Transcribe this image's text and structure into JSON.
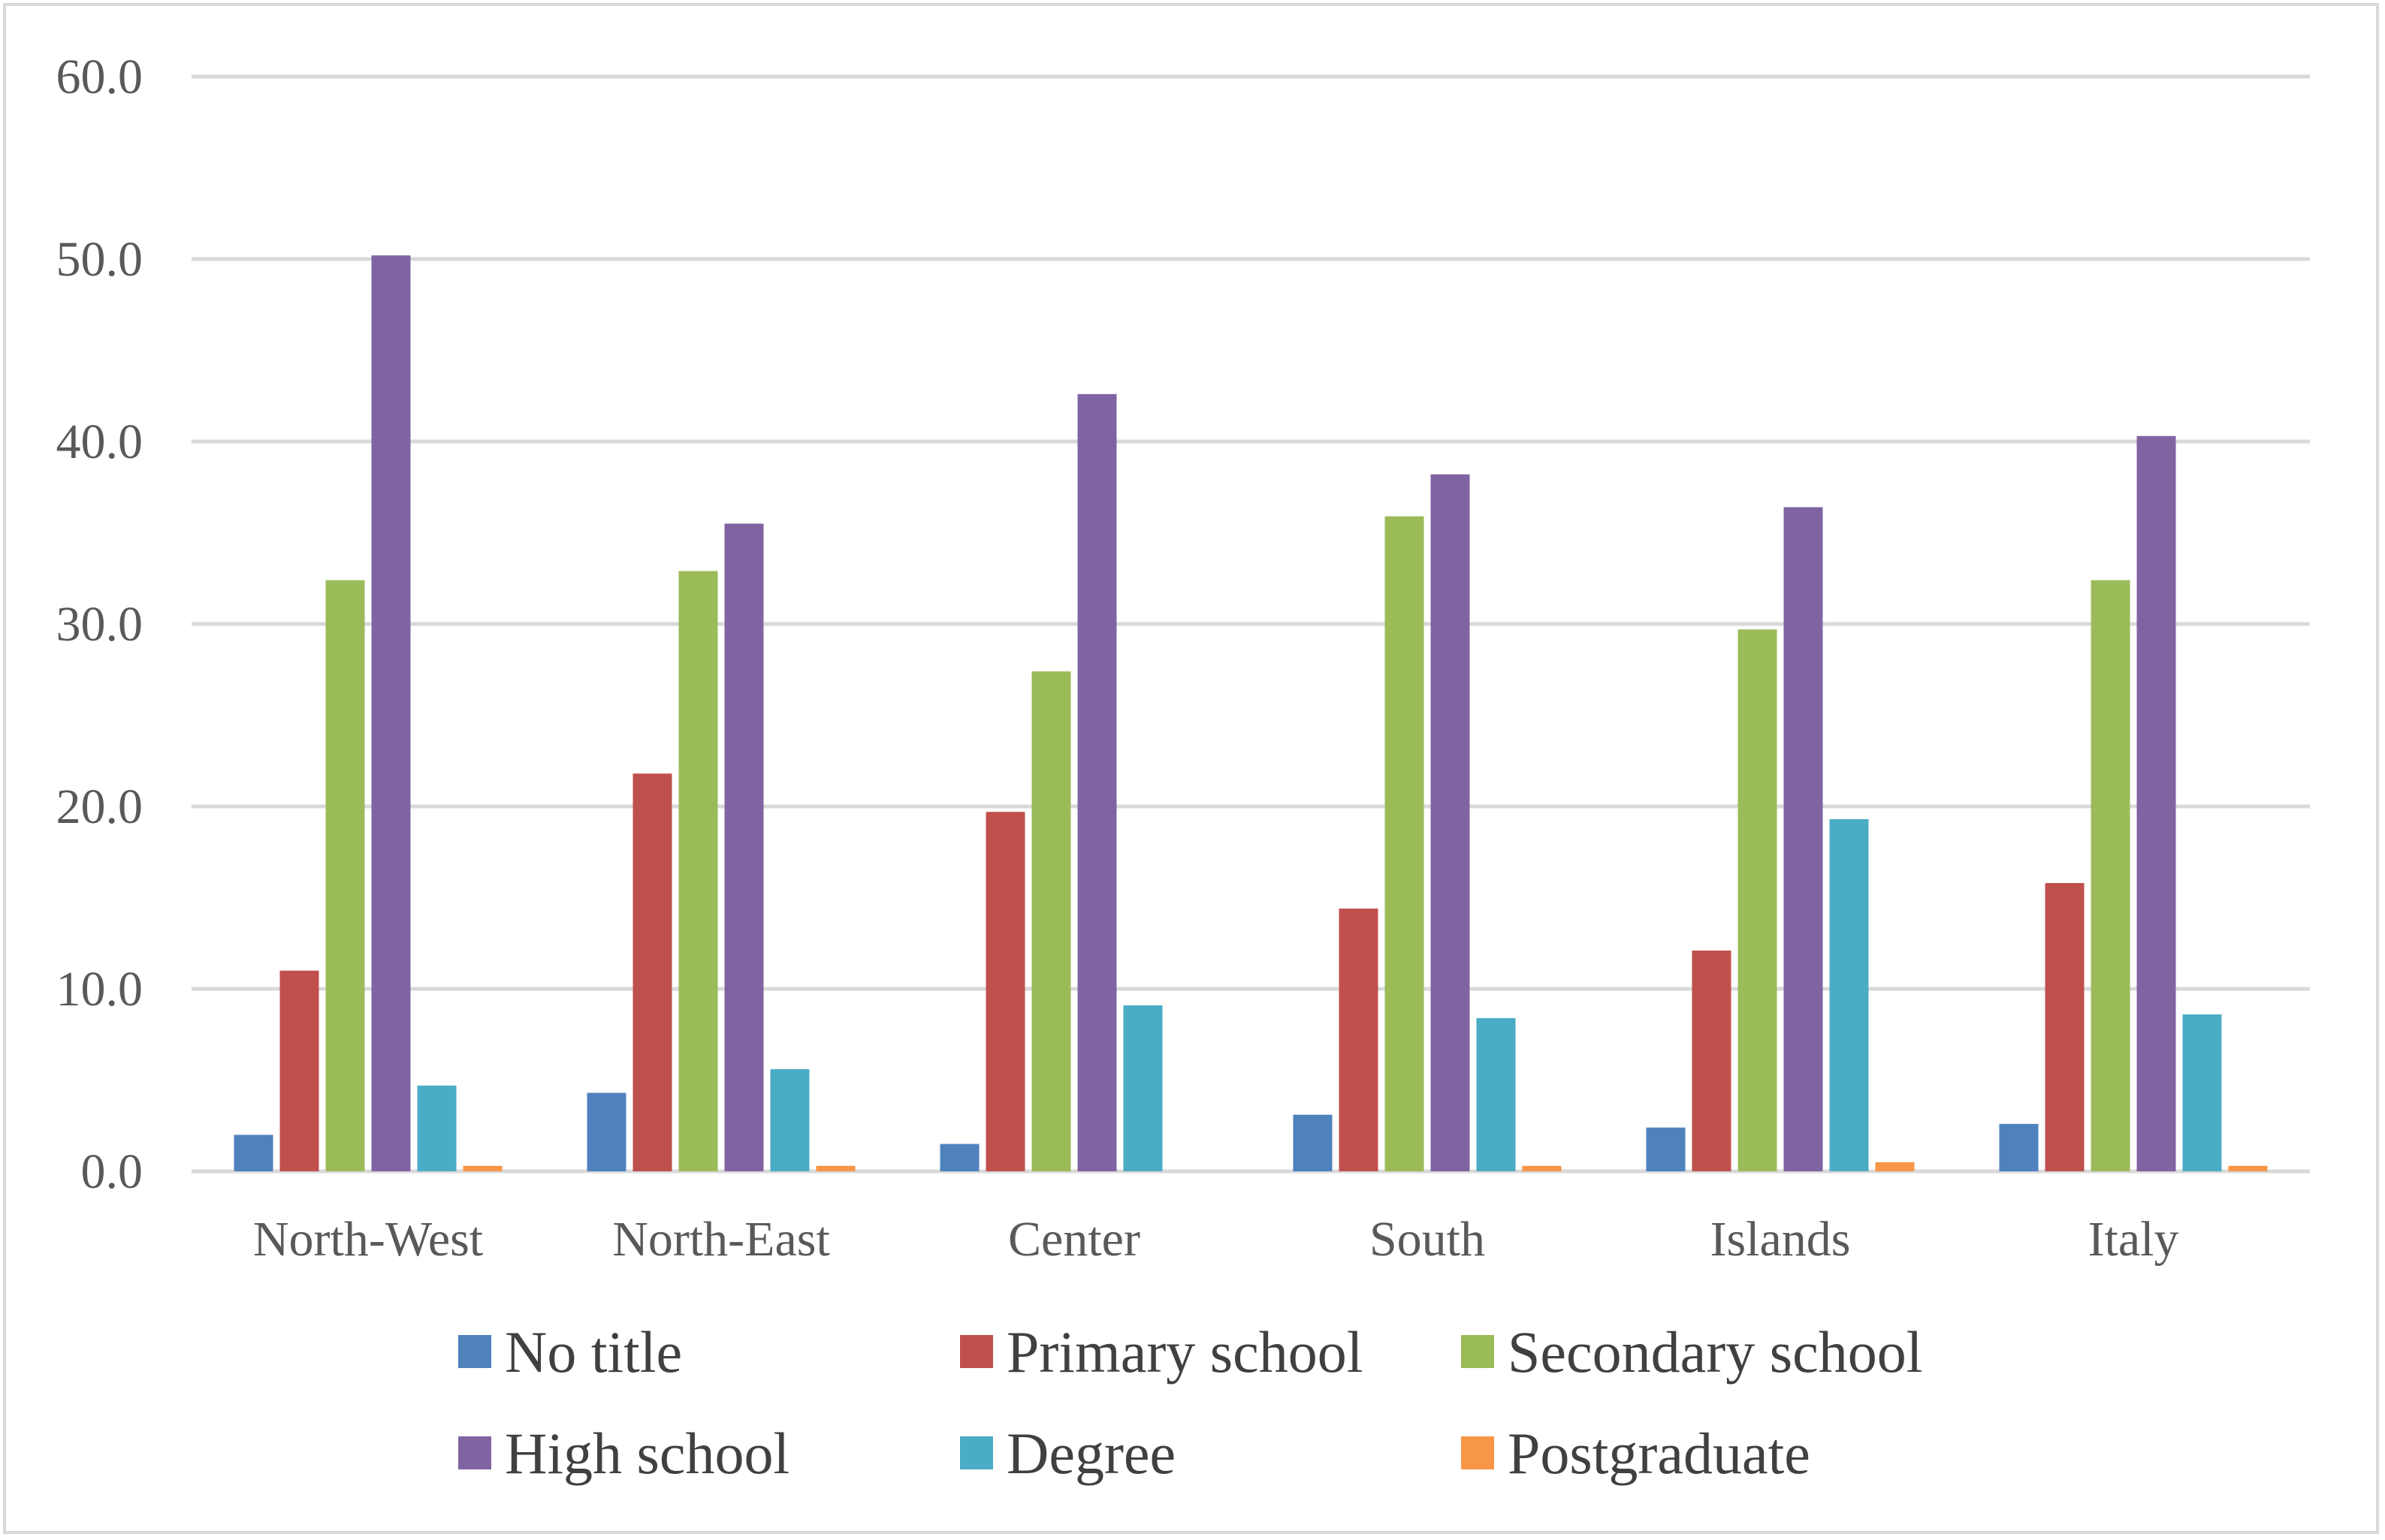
{
  "chart_data": {
    "type": "bar",
    "title": "",
    "xlabel": "",
    "ylabel": "",
    "ylim": [
      0,
      60
    ],
    "yticks": [
      "0.0",
      "10.0",
      "20.0",
      "30.0",
      "40.0",
      "50.0",
      "60.0"
    ],
    "grid": true,
    "legend_position": "bottom",
    "categories": [
      "North-West",
      "North-East",
      "Center",
      "South",
      "Islands",
      "Italy"
    ],
    "series": [
      {
        "name": "No title",
        "color": "#4f81bd",
        "values": [
          2.0,
          4.3,
          1.5,
          3.1,
          2.4,
          2.6
        ]
      },
      {
        "name": "Primary school",
        "color": "#c0504d",
        "values": [
          11.0,
          21.8,
          19.7,
          14.4,
          12.1,
          15.8
        ]
      },
      {
        "name": "Secondary school",
        "color": "#9bbb59",
        "values": [
          32.4,
          32.9,
          27.4,
          35.9,
          29.7,
          32.4
        ]
      },
      {
        "name": "High school",
        "color": "#8064a2",
        "values": [
          50.2,
          35.5,
          42.6,
          38.2,
          36.4,
          40.3
        ]
      },
      {
        "name": "Degree",
        "color": "#4bacc6",
        "values": [
          4.7,
          5.6,
          9.1,
          8.4,
          19.3,
          8.6
        ]
      },
      {
        "name": "Postgraduate",
        "color": "#f79646",
        "values": [
          0.3,
          0.3,
          0.0,
          0.3,
          0.5,
          0.3
        ]
      }
    ]
  }
}
